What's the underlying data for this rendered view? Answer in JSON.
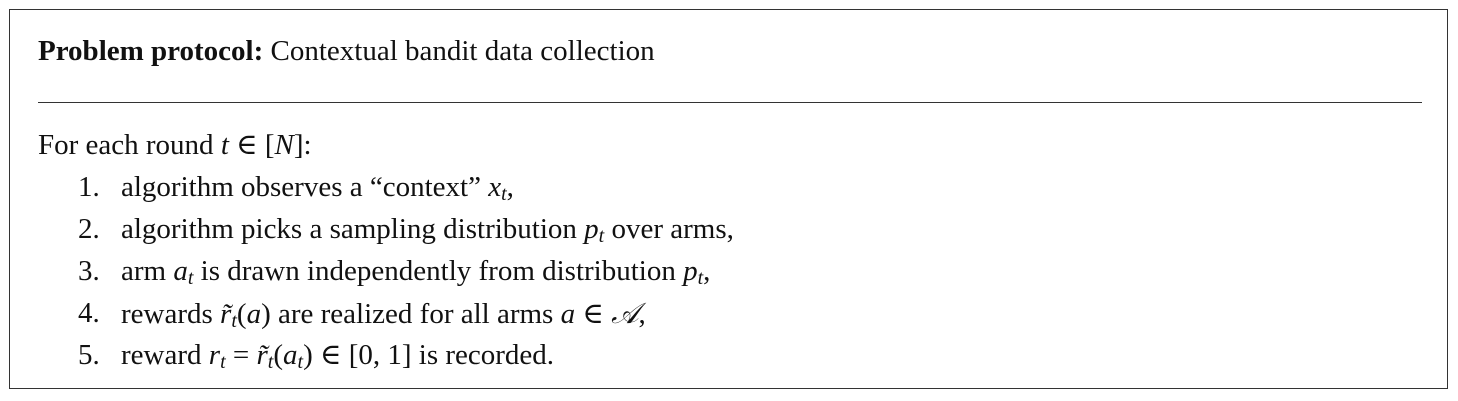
{
  "title": {
    "label": "Problem protocol:",
    "text": "Contextual bandit data collection"
  },
  "intro": {
    "prefix": "For each round ",
    "var_t": "t",
    "in": " ∈ [",
    "var_N": "N",
    "close": "]:"
  },
  "steps": [
    {
      "num": "1.",
      "pre": "algorithm observes a “context” ",
      "v1": "x",
      "s1": "t",
      "post": ","
    },
    {
      "num": "2.",
      "pre": "algorithm picks a sampling distribution ",
      "v1": "p",
      "s1": "t",
      "post": " over arms,"
    },
    {
      "num": "3.",
      "pre": "arm ",
      "v1": "a",
      "s1": "t",
      "mid": " is drawn independently from distribution ",
      "v2": "p",
      "s2": "t",
      "post": ","
    },
    {
      "num": "4.",
      "pre": "rewards ",
      "v1": "r̃",
      "s1": "t",
      "a1": "(",
      "v2": "a",
      "a2": ")",
      "mid": " are realized for all arms ",
      "v3": "a",
      "op": " ∈ ",
      "cal": "𝒜",
      "post": ","
    },
    {
      "num": "5.",
      "pre": "reward ",
      "v1": "r",
      "s1": "t",
      "eq": " = ",
      "v2": "r̃",
      "s2": "t",
      "a1": "(",
      "v3": "a",
      "s3": "t",
      "a2": ") ∈ [0, 1]",
      "post": " is recorded."
    }
  ]
}
